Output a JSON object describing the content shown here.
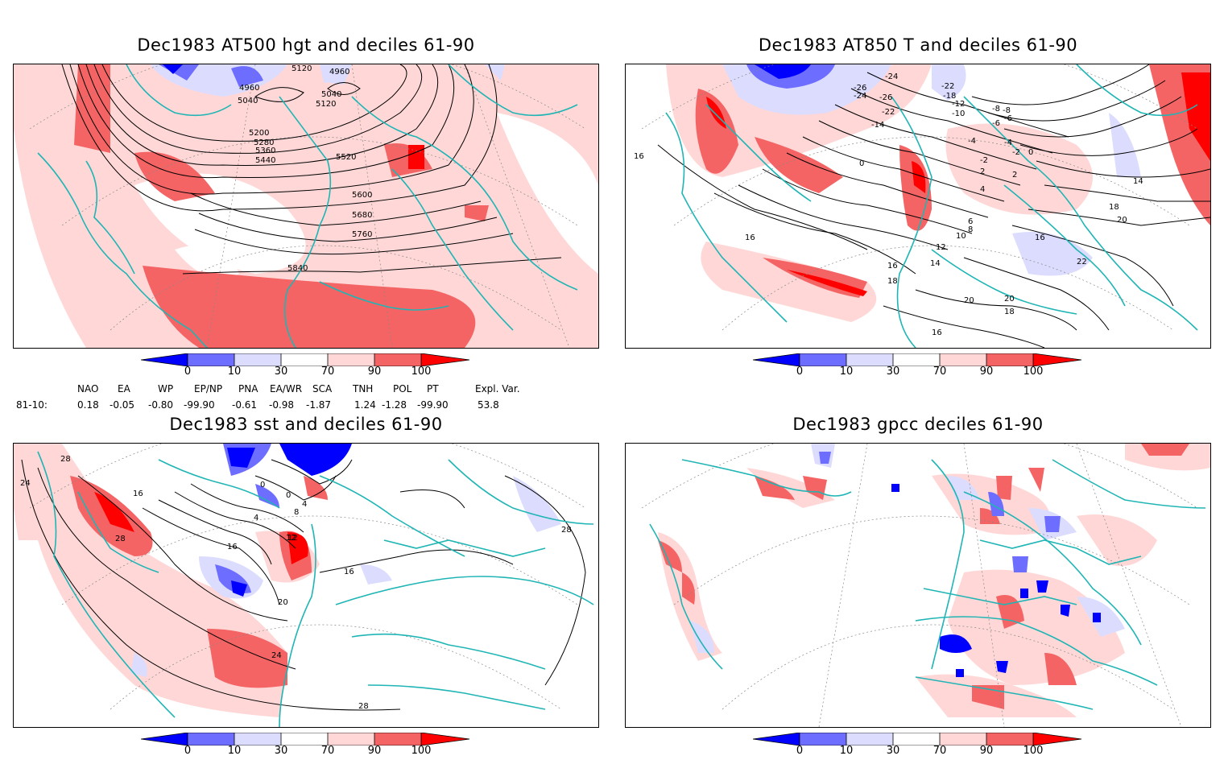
{
  "panels": [
    {
      "title": "Dec1983 AT500 hgt and deciles 61-90",
      "contour_labels": [
        "5120",
        "4960",
        "4960",
        "5040",
        "5040",
        "5120",
        "5200",
        "5280",
        "5360",
        "5440",
        "5520",
        "5600",
        "5680",
        "5760",
        "5840"
      ]
    },
    {
      "title": "Dec1983 AT850 T and deciles 61-90",
      "contour_labels": [
        "-24",
        "-26",
        "-22",
        "-24",
        "-26",
        "-18",
        "-22",
        "-14",
        "-12",
        "-10",
        "-8",
        "-6",
        "-4",
        "-2",
        "0",
        "2",
        "4",
        "6",
        "8",
        "10",
        "12",
        "14",
        "16",
        "16",
        "16",
        "18",
        "20",
        "22",
        "20",
        "18",
        "16",
        "14",
        "16",
        "18",
        "16",
        "-8",
        "-6",
        "-4",
        "-2",
        "2",
        "0"
      ]
    },
    {
      "title": "Dec1983 sst and deciles 61-90",
      "contour_labels": [
        "28",
        "24",
        "16",
        "28",
        "0",
        "4",
        "8",
        "12",
        "16",
        "20",
        "24",
        "28",
        "0",
        "4",
        "12",
        "16",
        "28"
      ]
    },
    {
      "title": "Dec1983 gpcc deciles 61-90",
      "contour_labels": []
    }
  ],
  "colorbar": {
    "labels": [
      "0",
      "10",
      "30",
      "70",
      "90",
      "100"
    ],
    "colors": {
      "dark_blue": "#0000ff",
      "mid_blue": "#6d6dff",
      "light_blue": "#dcdcff",
      "white": "#ffffff",
      "light_red": "#ffd7d7",
      "mid_red": "#f46464",
      "dark_red": "#ff0000"
    }
  },
  "index_table": {
    "headers": [
      "NAO",
      "EA",
      "WP",
      "EP/NP",
      "PNA",
      "EA/WR",
      "SCA",
      "TNH",
      "POL",
      "PT",
      "Expl. Var."
    ],
    "row_label": "81-10:",
    "values": [
      "0.18",
      "-0.05",
      "-0.80",
      "-99.90",
      "-0.61",
      "-0.98",
      "-1.87",
      "1.24",
      "-1.28",
      "-99.90",
      "53.8"
    ]
  },
  "map_colors": {
    "coastline": "#20b5b5",
    "contour": "#000000",
    "grid": "#888888"
  }
}
